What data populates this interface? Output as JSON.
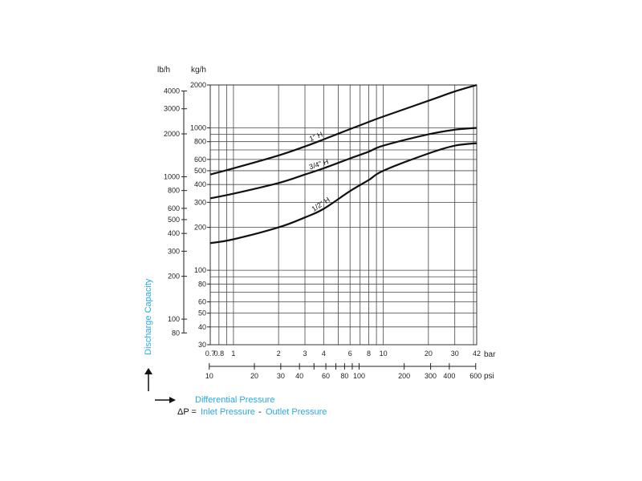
{
  "chart_data": {
    "type": "line",
    "x_scale": "log",
    "y_scale": "log",
    "grid": true,
    "xlim_bar": [
      0.7,
      42
    ],
    "ylim_kgh": [
      30,
      2000
    ],
    "y_unit_primary": "kg/h",
    "y_unit_secondary": "lb/h",
    "x_unit_primary": "bar",
    "x_unit_secondary": "psi",
    "ylabel": "Discharge Capacity",
    "xlabel": "Differential Pressure",
    "equation": {
      "lhs": "ΔP =",
      "inlet": "Inlet Pressure",
      "minus": "-",
      "outlet": "Outlet Pressure"
    },
    "kgh_ticks": [
      {
        "value": 2000,
        "label": "2000"
      },
      {
        "value": 1000,
        "label": "1000"
      },
      {
        "value": 800,
        "label": "800"
      },
      {
        "value": 600,
        "label": "600"
      },
      {
        "value": 500,
        "label": "500"
      },
      {
        "value": 400,
        "label": "400"
      },
      {
        "value": 300,
        "label": "300"
      },
      {
        "value": 200,
        "label": "200"
      },
      {
        "value": 100,
        "label": "100"
      },
      {
        "value": 80,
        "label": "80"
      },
      {
        "value": 60,
        "label": "60"
      },
      {
        "value": 50,
        "label": "50"
      },
      {
        "value": 40,
        "label": "40"
      },
      {
        "value": 30,
        "label": "30"
      }
    ],
    "kgh_minor_gridlines": [
      900,
      700,
      90,
      70
    ],
    "lbh_ticks": [
      {
        "value": 4000,
        "label": "4000"
      },
      {
        "value": 3000,
        "label": "3000"
      },
      {
        "value": 2000,
        "label": "2000"
      },
      {
        "value": 1000,
        "label": "1000"
      },
      {
        "value": 800,
        "label": "800"
      },
      {
        "value": 600,
        "label": "600"
      },
      {
        "value": 500,
        "label": "500"
      },
      {
        "value": 400,
        "label": "400"
      },
      {
        "value": 300,
        "label": "300"
      },
      {
        "value": 200,
        "label": "200"
      },
      {
        "value": 100,
        "label": "100"
      },
      {
        "value": 80,
        "label": "80"
      }
    ],
    "bar_ticks": [
      {
        "value": 0.7,
        "label": "0.7"
      },
      {
        "value": 0.8,
        "label": "0.8"
      },
      {
        "value": 1,
        "label": "1"
      },
      {
        "value": 2,
        "label": "2"
      },
      {
        "value": 3,
        "label": "3"
      },
      {
        "value": 4,
        "label": "4"
      },
      {
        "value": 6,
        "label": "6"
      },
      {
        "value": 8,
        "label": "8"
      },
      {
        "value": 10,
        "label": "10"
      },
      {
        "value": 20,
        "label": "20"
      },
      {
        "value": 30,
        "label": "30"
      },
      {
        "value": 42,
        "label": "42"
      }
    ],
    "bar_gridlines": [
      0.7,
      0.8,
      0.9,
      1,
      2,
      3,
      4,
      5,
      6,
      7,
      8,
      9,
      10,
      20,
      30,
      40,
      42
    ],
    "psi_ticks": [
      {
        "value": 10,
        "label": "10"
      },
      {
        "value": 20,
        "label": "20"
      },
      {
        "value": 30,
        "label": "30"
      },
      {
        "value": 40,
        "label": "40"
      },
      {
        "value": 60,
        "label": "60"
      },
      {
        "value": 80,
        "label": "80"
      },
      {
        "value": 100,
        "label": "100"
      },
      {
        "value": 200,
        "label": "200"
      },
      {
        "value": 300,
        "label": "300"
      },
      {
        "value": 400,
        "label": "400"
      },
      {
        "value": 600,
        "label": "600"
      }
    ],
    "psi_minor_ticks": [
      50,
      70,
      90
    ],
    "series": [
      {
        "name": "1\" H",
        "x": [
          0.7,
          1,
          2,
          3,
          4,
          6,
          8,
          10,
          20,
          30,
          42
        ],
        "y": [
          470,
          520,
          640,
          740,
          830,
          980,
          1100,
          1200,
          1550,
          1800,
          2000
        ]
      },
      {
        "name": "3/4\" H",
        "x": [
          0.7,
          1,
          2,
          3,
          4,
          6,
          8,
          10,
          20,
          30,
          42
        ],
        "y": [
          320,
          345,
          410,
          470,
          520,
          610,
          680,
          750,
          900,
          970,
          1000
        ]
      },
      {
        "name": "1/2\" H",
        "x": [
          0.7,
          1,
          2,
          3,
          4,
          6,
          8,
          10,
          20,
          30,
          42
        ],
        "y": [
          155,
          165,
          200,
          235,
          270,
          360,
          430,
          500,
          660,
          750,
          780
        ]
      }
    ]
  }
}
